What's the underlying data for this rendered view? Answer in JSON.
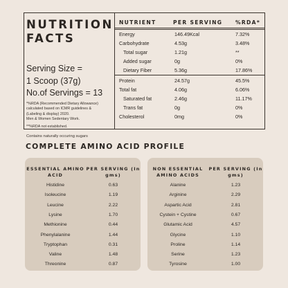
{
  "nutrition": {
    "title_line1": "NUTRITION",
    "title_line2": "FACTS",
    "serving_size_label": "Serving Size =",
    "serving_size_value": "1 Scoop (37g)",
    "servings_count": "No.of Servings = 13",
    "note_lines": [
      "*%RDA (Recommended Dietary Allowance)",
      "calculated based on ICMR guidelines &",
      "(Labeling & display) 2020.",
      "Men & Women Sedentary Work."
    ],
    "note_na": "**%RDA not established.",
    "contains_note": "Contains naturally occuring sugars",
    "headers": {
      "nutrient": "NUTRIENT",
      "per_serving": "PER SERVING",
      "rda": "%RDA*"
    },
    "rows": [
      {
        "name": "Energy",
        "value": "146.49Kcal",
        "rda": "7.32%"
      },
      {
        "name": "Carbohydrate",
        "value": "4.53g",
        "rda": "3.48%"
      },
      {
        "name": "Total sugar",
        "value": "1.21g",
        "rda": "**"
      },
      {
        "name": "Added sugar",
        "value": "0g",
        "rda": "0%"
      },
      {
        "name": "Dietary Fiber",
        "value": "5.36g",
        "rda": "17.86%"
      },
      {
        "name": "Protein",
        "value": "24.57g",
        "rda": "45.5%"
      },
      {
        "name": "Total fat",
        "value": "4.06g",
        "rda": "6.06%"
      },
      {
        "name": "Saturated fat",
        "value": "2.46g",
        "rda": "11.17%"
      },
      {
        "name": "Trans fat",
        "value": "0g",
        "rda": "0%"
      },
      {
        "name": "Cholesterol",
        "value": "0mg",
        "rda": "0%"
      }
    ]
  },
  "amino": {
    "section_title": "COMPLETE AMINO ACID PROFILE",
    "essential": {
      "header_name": "ESSENTIAL AMINO ACID",
      "header_value": "PER SERVING (In gms)",
      "rows": [
        {
          "name": "Histidine",
          "value": "0.63"
        },
        {
          "name": "Isoleucine",
          "value": "1.19"
        },
        {
          "name": "Leucine",
          "value": "2.22"
        },
        {
          "name": "Lysine",
          "value": "1.70"
        },
        {
          "name": "Methionine",
          "value": "0.44"
        },
        {
          "name": "Phenylalanine",
          "value": "1.44"
        },
        {
          "name": "Tryptophan",
          "value": "0.31"
        },
        {
          "name": "Valine",
          "value": "1.48"
        },
        {
          "name": "Threonine",
          "value": "0.87"
        }
      ]
    },
    "non_essential": {
      "header_name": "NON ESSENTIAL AMINO ACIDS",
      "header_value": "PER SERVING (In gms)",
      "rows": [
        {
          "name": "Alanine",
          "value": "1.23"
        },
        {
          "name": "Arginine",
          "value": "2.29"
        },
        {
          "name": "Aspartic Acid",
          "value": "2.81"
        },
        {
          "name": "Cystein + Cystine",
          "value": "0.67"
        },
        {
          "name": "Glutamic Acid",
          "value": "4.57"
        },
        {
          "name": "Glycine",
          "value": "1.10"
        },
        {
          "name": "Proline",
          "value": "1.14"
        },
        {
          "name": "Serine",
          "value": "1.23"
        },
        {
          "name": "Tyrosine",
          "value": "1.00"
        }
      ]
    }
  }
}
